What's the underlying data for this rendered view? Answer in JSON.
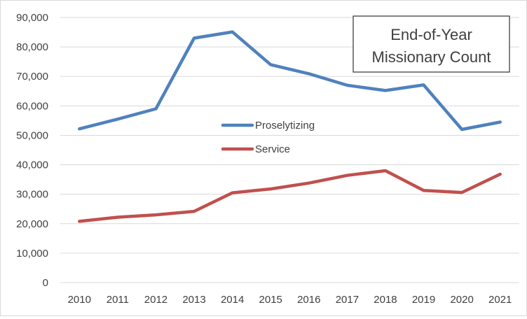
{
  "chart_data": {
    "type": "line",
    "title_lines": [
      "End-of-Year",
      "Missionary Count"
    ],
    "xlabel": "",
    "ylabel": "",
    "categories": [
      "2010",
      "2011",
      "2012",
      "2013",
      "2014",
      "2015",
      "2016",
      "2017",
      "2018",
      "2019",
      "2020",
      "2021"
    ],
    "y_ticks": [
      "0",
      "10,000",
      "20,000",
      "30,000",
      "40,000",
      "50,000",
      "60,000",
      "70,000",
      "80,000",
      "90,000"
    ],
    "ylim": [
      0,
      90000
    ],
    "grid": "horizontal",
    "legend_placement": "center",
    "series": [
      {
        "name": "Proselytizing",
        "color": "#4f81bd",
        "values": [
          52200,
          55500,
          59000,
          83000,
          85100,
          74000,
          70900,
          67000,
          65200,
          67100,
          52000,
          54500
        ]
      },
      {
        "name": "Service",
        "color": "#c0504d",
        "values": [
          20800,
          22200,
          23000,
          24200,
          30500,
          31800,
          33800,
          36400,
          38000,
          31300,
          30600,
          36800
        ]
      }
    ]
  }
}
